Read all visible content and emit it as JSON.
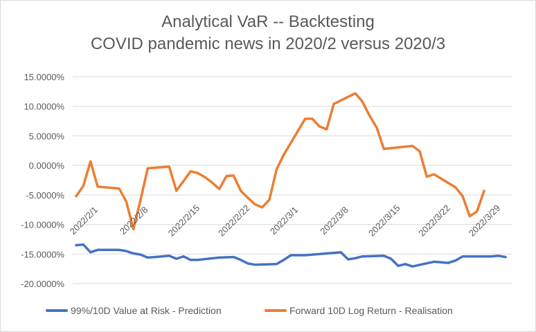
{
  "chart_data": {
    "type": "line",
    "title_line1": "Analytical VaR -- Backtesting",
    "title_line2": "COVID pandemic news in 2020/2 versus 2020/3",
    "xlabel": "",
    "ylabel": "",
    "ylim": [
      -0.2,
      0.15
    ],
    "y_ticks": [
      {
        "value": 0.15,
        "label": "15.0000%"
      },
      {
        "value": 0.1,
        "label": "10.0000%"
      },
      {
        "value": 0.05,
        "label": "5.0000%"
      },
      {
        "value": 0.0,
        "label": "0.0000%"
      },
      {
        "value": -0.05,
        "label": "-5.0000%"
      },
      {
        "value": -0.1,
        "label": "-10.0000%"
      },
      {
        "value": -0.15,
        "label": "-15.0000%"
      },
      {
        "value": -0.2,
        "label": "-20.0000%"
      }
    ],
    "x_ticks": [
      {
        "index": 0,
        "label": "2022/2/1"
      },
      {
        "index": 7,
        "label": "2022/2/8"
      },
      {
        "index": 14,
        "label": "2022/2/15"
      },
      {
        "index": 21,
        "label": "2022/2/22"
      },
      {
        "index": 28,
        "label": "2022/3/1"
      },
      {
        "index": 35,
        "label": "2022/3/8"
      },
      {
        "index": 42,
        "label": "2022/3/15"
      },
      {
        "index": 49,
        "label": "2022/3/22"
      },
      {
        "index": 56,
        "label": "2022/3/29"
      }
    ],
    "series": [
      {
        "name": "99%/10D Value at Risk - Prediction",
        "color": "#4472C4",
        "points": [
          [
            0,
            -0.135
          ],
          [
            1,
            -0.134
          ],
          [
            2,
            -0.147
          ],
          [
            3,
            -0.143
          ],
          [
            4,
            -0.143
          ],
          [
            5,
            -0.143
          ],
          [
            6,
            -0.143
          ],
          [
            7,
            -0.145
          ],
          [
            8,
            -0.149
          ],
          [
            9,
            -0.151
          ],
          [
            10,
            -0.156
          ],
          [
            11,
            -0.155
          ],
          [
            12,
            -0.154
          ],
          [
            13,
            -0.153
          ],
          [
            14,
            -0.158
          ],
          [
            15,
            -0.154
          ],
          [
            16,
            -0.16
          ],
          [
            17,
            -0.16
          ],
          [
            20,
            -0.156
          ],
          [
            22,
            -0.155
          ],
          [
            23,
            -0.16
          ],
          [
            24,
            -0.166
          ],
          [
            25,
            -0.168
          ],
          [
            28,
            -0.167
          ],
          [
            29,
            -0.16
          ],
          [
            30,
            -0.152
          ],
          [
            32,
            -0.152
          ],
          [
            33,
            -0.151
          ],
          [
            37,
            -0.147
          ],
          [
            38,
            -0.159
          ],
          [
            39,
            -0.157
          ],
          [
            40,
            -0.154
          ],
          [
            43,
            -0.153
          ],
          [
            44,
            -0.158
          ],
          [
            45,
            -0.17
          ],
          [
            46,
            -0.167
          ],
          [
            47,
            -0.171
          ],
          [
            50,
            -0.163
          ],
          [
            52,
            -0.165
          ],
          [
            53,
            -0.161
          ],
          [
            54,
            -0.154
          ],
          [
            58,
            -0.154
          ],
          [
            59,
            -0.153
          ],
          [
            60,
            -0.155
          ]
        ]
      },
      {
        "name": "Forward 10D Log Return - Realisation",
        "color": "#ED7D31",
        "points": [
          [
            0,
            -0.052
          ],
          [
            1,
            -0.035
          ],
          [
            2,
            0.007
          ],
          [
            3,
            -0.036
          ],
          [
            4,
            -0.037
          ],
          [
            5,
            -0.038
          ],
          [
            6,
            -0.039
          ],
          [
            7,
            -0.061
          ],
          [
            8,
            -0.108
          ],
          [
            9,
            -0.058
          ],
          [
            10,
            -0.005
          ],
          [
            13,
            -0.002
          ],
          [
            14,
            -0.043
          ],
          [
            16,
            -0.01
          ],
          [
            17,
            -0.013
          ],
          [
            18,
            -0.02
          ],
          [
            19,
            -0.029
          ],
          [
            20,
            -0.04
          ],
          [
            21,
            -0.018
          ],
          [
            22,
            -0.017
          ],
          [
            23,
            -0.043
          ],
          [
            24,
            -0.055
          ],
          [
            25,
            -0.066
          ],
          [
            26,
            -0.071
          ],
          [
            27,
            -0.058
          ],
          [
            28,
            -0.007
          ],
          [
            29,
            0.018
          ],
          [
            32,
            0.079
          ],
          [
            33,
            0.079
          ],
          [
            34,
            0.066
          ],
          [
            35,
            0.061
          ],
          [
            36,
            0.104
          ],
          [
            39,
            0.122
          ],
          [
            40,
            0.108
          ],
          [
            41,
            0.084
          ],
          [
            42,
            0.064
          ],
          [
            43,
            0.028
          ],
          [
            47,
            0.033
          ],
          [
            48,
            0.024
          ],
          [
            49,
            -0.019
          ],
          [
            50,
            -0.015
          ],
          [
            53,
            -0.037
          ],
          [
            54,
            -0.052
          ],
          [
            55,
            -0.086
          ],
          [
            56,
            -0.078
          ],
          [
            57,
            -0.043
          ]
        ]
      }
    ],
    "x_max_index": 60,
    "legend_position": "bottom",
    "grid": "horizontal"
  }
}
